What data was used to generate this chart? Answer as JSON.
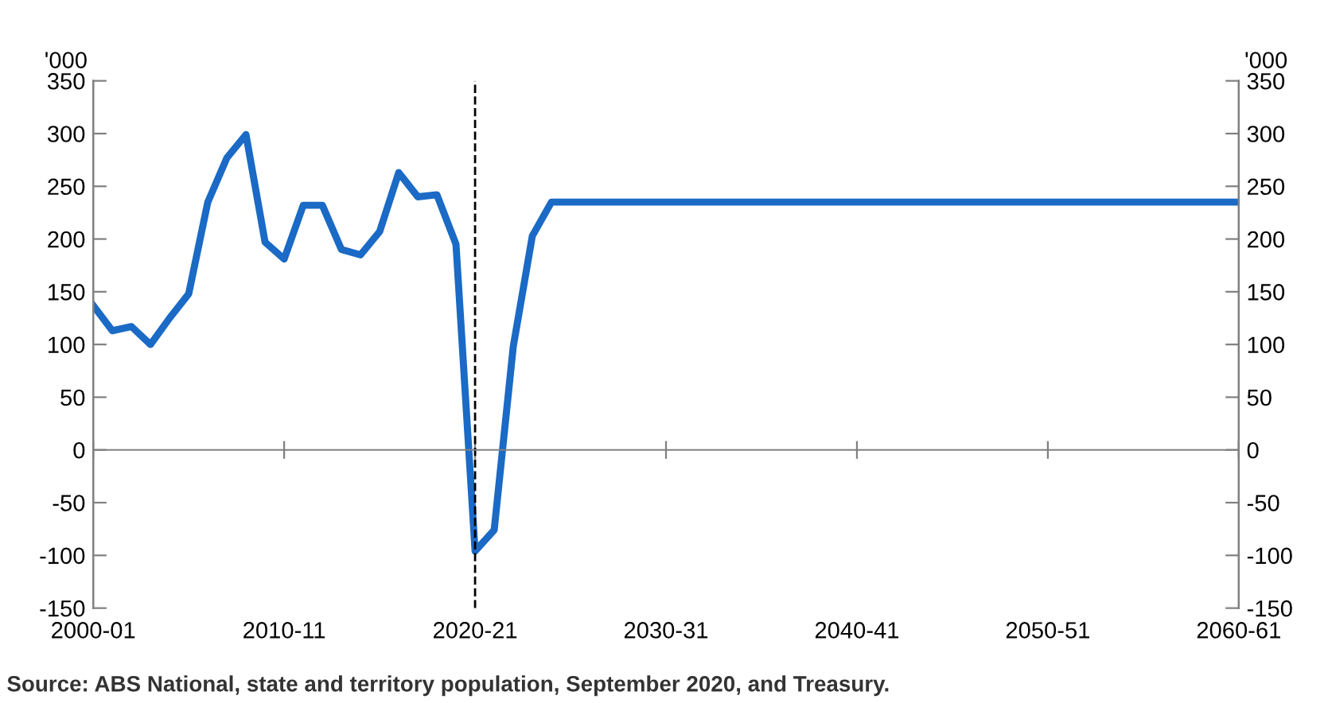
{
  "chart_data": {
    "type": "line",
    "categories": [
      "2000-01",
      null,
      null,
      null,
      null,
      null,
      null,
      null,
      null,
      null,
      "2010-11",
      null,
      null,
      null,
      null,
      null,
      null,
      null,
      null,
      null,
      "2020-21",
      null,
      null,
      null,
      null,
      null,
      null,
      null,
      null,
      null,
      "2030-31",
      null,
      null,
      null,
      null,
      null,
      null,
      null,
      null,
      null,
      "2040-41",
      null,
      null,
      null,
      null,
      null,
      null,
      null,
      null,
      null,
      "2050-51",
      null,
      null,
      null,
      null,
      null,
      null,
      null,
      null,
      null,
      "2060-61"
    ],
    "series": [
      {
        "color": "#1a6ac6",
        "values": [
          137,
          113,
          117,
          100,
          125,
          148,
          235,
          277,
          299,
          197,
          181,
          232,
          232,
          190,
          185,
          207,
          263,
          240,
          242,
          195,
          -96,
          -76,
          98,
          203,
          235,
          235,
          235,
          235,
          235,
          235,
          235,
          235,
          235,
          235,
          235,
          235,
          235,
          235,
          235,
          235,
          235,
          235,
          235,
          235,
          235,
          235,
          235,
          235,
          235,
          235,
          235,
          235,
          235,
          235,
          235,
          235,
          235,
          235,
          235,
          235,
          235
        ]
      }
    ],
    "ylim": [
      -150,
      350
    ],
    "yticks": [
      -150,
      -100,
      -50,
      0,
      50,
      100,
      150,
      200,
      250,
      300,
      350
    ],
    "y2lim": [
      -150,
      350
    ],
    "y2ticks": [
      -150,
      -100,
      -50,
      0,
      50,
      100,
      150,
      200,
      250,
      300,
      350
    ],
    "ylabel": "'000",
    "y2label": "'000",
    "ref_lines": [
      {
        "axis": "x",
        "value": "2020-21",
        "color": "#000000",
        "line_style": "dashed"
      }
    ],
    "marker": "none",
    "line_style": "solid",
    "grid": false,
    "legend": false,
    "annotations": [
      "Source: ABS National, state and territory population, September 2020, and Treasury."
    ]
  }
}
